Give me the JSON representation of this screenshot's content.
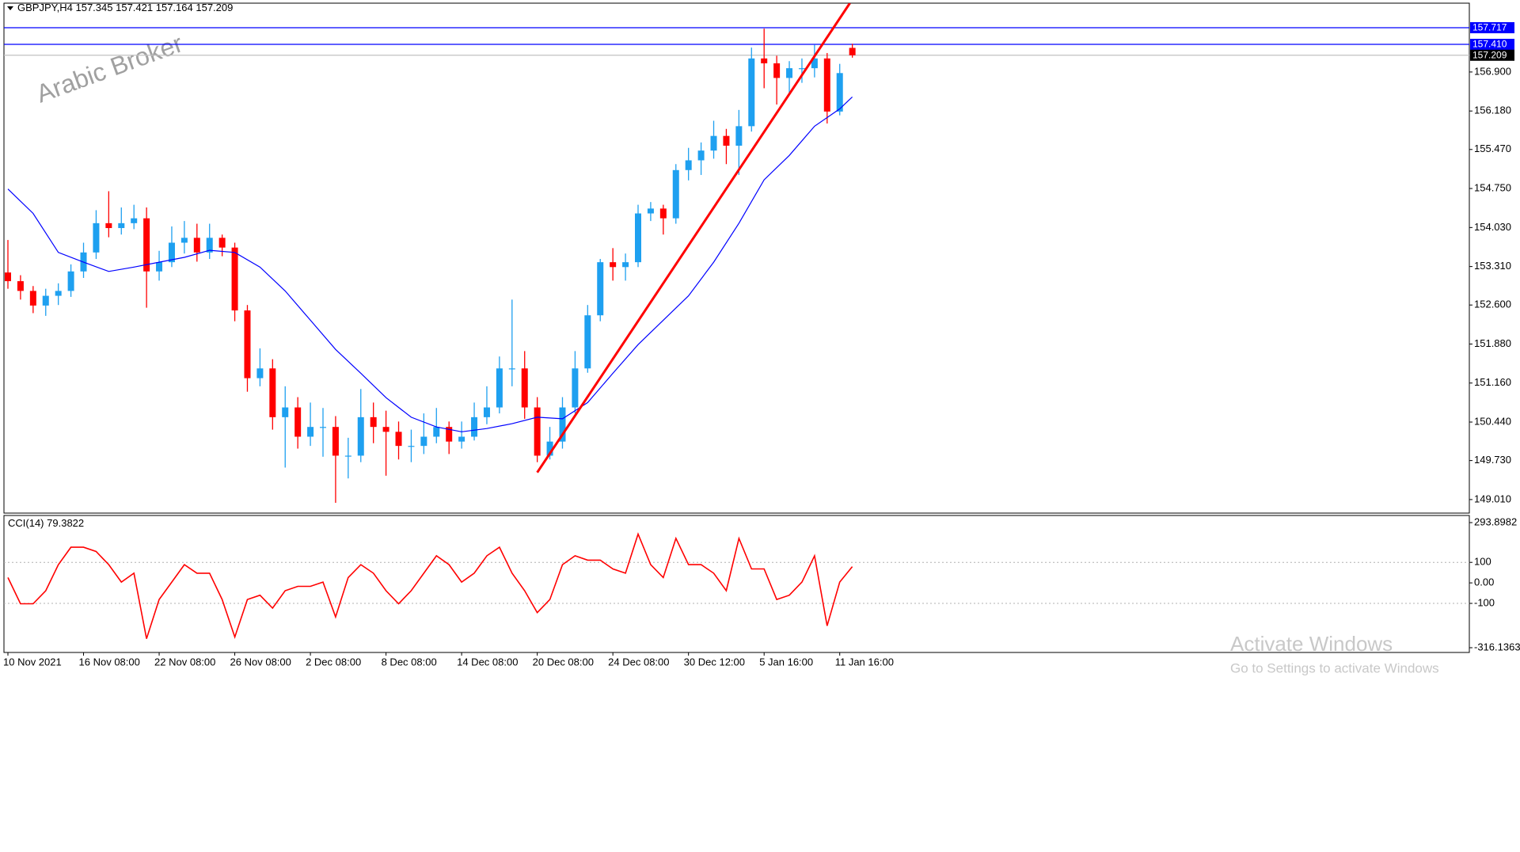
{
  "chart_data": [
    {
      "type": "candlestick",
      "title": "GBPJPY,H4",
      "watermark": "Arabic Broker",
      "categories": [
        "10 Nov 2021",
        null,
        null,
        null,
        null,
        null,
        "16 Nov 08:00",
        null,
        null,
        null,
        null,
        null,
        "22 Nov 08:00",
        null,
        null,
        null,
        null,
        null,
        "26 Nov 08:00",
        null,
        null,
        null,
        null,
        null,
        "2 Dec 08:00",
        null,
        null,
        null,
        null,
        null,
        "8 Dec 08:00",
        null,
        null,
        null,
        null,
        null,
        "14 Dec 08:00",
        null,
        null,
        null,
        null,
        null,
        "20 Dec 08:00",
        null,
        null,
        null,
        null,
        null,
        "24 Dec 08:00",
        null,
        null,
        null,
        null,
        null,
        "30 Dec 12:00",
        null,
        null,
        null,
        null,
        null,
        "5 Jan 16:00",
        null,
        null,
        null,
        null,
        null,
        "11 Jan 16:00",
        null
      ],
      "open": [
        153.2,
        153.04,
        152.86,
        152.59,
        152.77,
        152.86,
        153.22,
        153.57,
        154.11,
        154.02,
        154.11,
        154.2,
        153.22,
        153.39,
        153.75,
        153.84,
        153.57,
        153.84,
        153.66,
        152.5,
        151.25,
        151.43,
        150.53,
        150.71,
        150.17,
        150.35,
        150.35,
        149.82,
        149.82,
        150.53,
        150.35,
        150.26,
        150.0,
        150.0,
        150.17,
        150.35,
        150.08,
        150.17,
        150.53,
        150.71,
        151.43,
        151.43,
        150.71,
        149.82,
        150.08,
        150.71,
        151.43,
        152.41,
        153.39,
        153.3,
        153.39,
        154.29,
        154.38,
        154.2,
        155.09,
        155.27,
        155.45,
        155.72,
        155.54,
        155.9,
        157.15,
        157.06,
        156.79,
        156.97,
        156.97,
        157.15,
        156.17,
        157.345
      ],
      "high": [
        153.8,
        153.15,
        152.95,
        152.9,
        153.0,
        153.35,
        153.75,
        154.35,
        154.7,
        154.4,
        154.45,
        154.4,
        153.6,
        154.05,
        154.15,
        154.1,
        154.1,
        153.9,
        153.75,
        152.6,
        151.8,
        151.6,
        151.1,
        150.9,
        150.8,
        150.7,
        150.55,
        150.15,
        151.05,
        150.8,
        150.65,
        150.45,
        150.3,
        150.6,
        150.7,
        150.45,
        150.45,
        150.8,
        151.1,
        151.65,
        152.7,
        151.75,
        150.9,
        150.35,
        150.9,
        151.75,
        152.6,
        153.45,
        153.65,
        153.55,
        154.45,
        154.5,
        154.45,
        155.2,
        155.5,
        155.6,
        156.0,
        155.85,
        156.2,
        157.35,
        157.7,
        157.2,
        157.1,
        157.15,
        157.4,
        157.25,
        157.05,
        157.421
      ],
      "low": [
        152.9,
        152.7,
        152.45,
        152.4,
        152.6,
        152.75,
        153.1,
        153.45,
        153.85,
        153.9,
        154.0,
        152.55,
        153.05,
        153.3,
        153.55,
        153.4,
        153.45,
        153.5,
        152.3,
        151.0,
        151.1,
        150.3,
        149.6,
        149.95,
        150.0,
        149.8,
        148.95,
        149.4,
        149.7,
        150.05,
        149.45,
        149.75,
        149.7,
        149.85,
        150.05,
        149.85,
        149.95,
        150.1,
        150.4,
        150.6,
        151.1,
        150.5,
        149.7,
        149.75,
        149.95,
        150.6,
        151.35,
        152.3,
        153.05,
        153.05,
        153.3,
        154.15,
        153.9,
        154.1,
        154.9,
        155.0,
        155.3,
        155.2,
        155.0,
        155.8,
        156.6,
        156.3,
        156.5,
        156.7,
        156.8,
        155.95,
        156.1,
        157.164
      ],
      "close": [
        153.04,
        152.86,
        152.59,
        152.77,
        152.86,
        153.22,
        153.57,
        154.11,
        154.02,
        154.11,
        154.2,
        153.22,
        153.39,
        153.75,
        153.84,
        153.57,
        153.84,
        153.66,
        152.5,
        151.25,
        151.43,
        150.53,
        150.71,
        150.17,
        150.35,
        150.35,
        149.82,
        149.82,
        150.53,
        150.35,
        150.26,
        150.0,
        150.0,
        150.17,
        150.35,
        150.08,
        150.17,
        150.53,
        150.71,
        151.43,
        151.43,
        150.71,
        149.82,
        150.08,
        150.71,
        151.43,
        152.41,
        153.39,
        153.3,
        153.39,
        154.29,
        154.38,
        154.2,
        155.09,
        155.27,
        155.45,
        155.72,
        155.54,
        155.9,
        157.15,
        157.06,
        156.79,
        156.97,
        156.97,
        157.15,
        156.17,
        156.88,
        157.209
      ],
      "up_color": "#1ea0f0",
      "down_color": "#ff0000",
      "ma": {
        "color": "#0000ff",
        "x": [
          0,
          2,
          4,
          6,
          8,
          10,
          12,
          14,
          16,
          18,
          20,
          22,
          24,
          26,
          28,
          30,
          32,
          34,
          36,
          38,
          40,
          42,
          44,
          46,
          48,
          50,
          52,
          54,
          56,
          58,
          60,
          62,
          64,
          66,
          67
        ],
        "values": [
          154.74,
          154.29,
          153.57,
          153.39,
          153.22,
          153.3,
          153.39,
          153.48,
          153.61,
          153.57,
          153.3,
          152.86,
          152.32,
          151.78,
          151.34,
          150.89,
          150.53,
          150.35,
          150.26,
          150.32,
          150.41,
          150.53,
          150.5,
          150.8,
          151.34,
          151.87,
          152.32,
          152.77,
          153.39,
          154.11,
          154.91,
          155.36,
          155.9,
          156.22,
          156.44
        ]
      },
      "trendline": {
        "color": "#ff0000",
        "x": [
          42,
          66.8
        ],
        "values": [
          149.51,
          158.17
        ]
      },
      "price_lines": [
        {
          "value": 157.717,
          "color": "#0000ff"
        },
        {
          "value": 157.41,
          "label": "157.410",
          "color": "#0000ff"
        },
        {
          "value": 157.209,
          "color": "#000000"
        }
      ],
      "ylim": [
        148.76,
        158.17
      ],
      "yticks": [
        {
          "value": 156.9,
          "label": "156.900"
        },
        {
          "value": 156.18,
          "label": "156.180"
        },
        {
          "value": 155.47,
          "label": "155.470"
        },
        {
          "value": 154.75,
          "label": "154.750"
        },
        {
          "value": 154.03,
          "label": "154.030"
        },
        {
          "value": 153.31,
          "label": "153.310"
        },
        {
          "value": 152.6,
          "label": "152.600"
        },
        {
          "value": 151.88,
          "label": "151.880"
        },
        {
          "value": 151.16,
          "label": "151.160"
        },
        {
          "value": 150.44,
          "label": "150.440"
        },
        {
          "value": 149.73,
          "label": "149.730"
        },
        {
          "value": 149.01,
          "label": "149.010"
        }
      ]
    },
    {
      "type": "line",
      "title": "CCI(14)",
      "series": [
        {
          "color": "#ff0000",
          "values": [
            26,
            -102,
            -102,
            -38,
            89,
            174,
            174,
            153,
            89,
            4,
            47,
            -272,
            -81,
            4,
            89,
            47,
            47,
            -81,
            -264,
            -81,
            -60,
            -123,
            -38,
            -17,
            -17,
            4,
            -166,
            26,
            89,
            47,
            -38,
            -102,
            -38,
            47,
            132,
            89,
            4,
            47,
            132,
            174,
            47,
            -38,
            -145,
            -81,
            89,
            132,
            111,
            111,
            68,
            47,
            238,
            89,
            26,
            217,
            89,
            89,
            47,
            -38,
            217,
            68,
            68,
            -81,
            -60,
            4,
            132,
            -209,
            4,
            79.3822
          ]
        }
      ],
      "ylim": [
        -316.1363,
        293.8982
      ],
      "yticks": [
        293.8982,
        100,
        {
          "value": 0,
          "label": "0.00"
        },
        -100,
        -316.1363
      ],
      "dotted_levels": [
        100,
        -100
      ]
    }
  ],
  "os_notice": {
    "title": "Activate Windows",
    "subtitle": "Go to Settings to activate Windows"
  }
}
